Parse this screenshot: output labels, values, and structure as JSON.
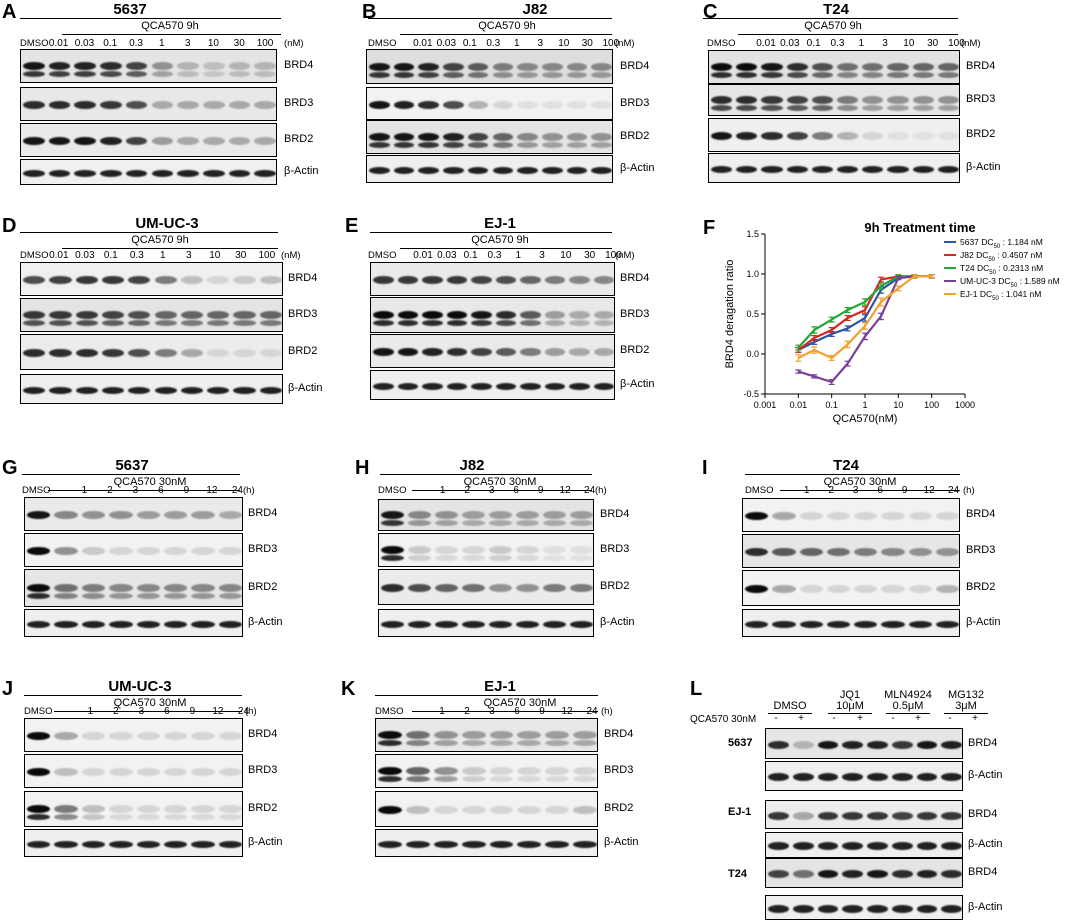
{
  "figure": {
    "panels": [
      {
        "id": "A",
        "cell": "5637",
        "kind": "dose",
        "patterns": [
          {
            "protein": "BRD4",
            "bg": "#e4e4e4",
            "i": [
              0.95,
              0.9,
              0.9,
              0.85,
              0.75,
              0.4,
              0.25,
              0.2,
              0.25,
              0.25
            ],
            "double": true
          },
          {
            "protein": "BRD3",
            "bg": "#e8e8e8",
            "i": [
              0.85,
              0.85,
              0.85,
              0.8,
              0.7,
              0.3,
              0.3,
              0.3,
              0.3,
              0.3
            ],
            "double": false
          },
          {
            "protein": "BRD2",
            "bg": "#eaeaea",
            "i": [
              0.95,
              0.95,
              0.95,
              0.9,
              0.75,
              0.35,
              0.3,
              0.3,
              0.3,
              0.3
            ],
            "double": false
          },
          {
            "protein": "β-Actin",
            "bg": "#f0f0f0",
            "i": [
              0.9,
              0.9,
              0.9,
              0.9,
              0.9,
              0.9,
              0.9,
              0.9,
              0.9,
              0.9
            ],
            "double": false
          }
        ]
      },
      {
        "id": "B",
        "cell": "J82",
        "kind": "dose",
        "patterns": [
          {
            "protein": "BRD4",
            "bg": "#dedede",
            "i": [
              0.95,
              0.95,
              0.9,
              0.75,
              0.65,
              0.5,
              0.45,
              0.45,
              0.45,
              0.45
            ],
            "double": true
          },
          {
            "protein": "BRD3",
            "bg": "#f2f2f2",
            "i": [
              0.95,
              0.9,
              0.85,
              0.7,
              0.25,
              0.1,
              0.05,
              0.05,
              0.05,
              0.05
            ],
            "double": false
          },
          {
            "protein": "BRD2",
            "bg": "#e4e4e4",
            "i": [
              0.95,
              0.95,
              0.95,
              0.9,
              0.75,
              0.6,
              0.45,
              0.4,
              0.4,
              0.4
            ],
            "double": true
          },
          {
            "protein": "β-Actin",
            "bg": "#efefef",
            "i": [
              0.9,
              0.9,
              0.9,
              0.9,
              0.9,
              0.9,
              0.9,
              0.9,
              0.9,
              0.9
            ],
            "double": false
          }
        ]
      },
      {
        "id": "C",
        "cell": "T24",
        "kind": "dose",
        "patterns": [
          {
            "protein": "BRD4",
            "bg": "#e2e2e2",
            "i": [
              1,
              1,
              0.95,
              0.85,
              0.7,
              0.55,
              0.55,
              0.6,
              0.6,
              0.6
            ],
            "double": true
          },
          {
            "protein": "BRD3",
            "bg": "#e6e6e6",
            "i": [
              0.85,
              0.85,
              0.8,
              0.75,
              0.7,
              0.5,
              0.4,
              0.4,
              0.4,
              0.4
            ],
            "double": true
          },
          {
            "protein": "BRD2",
            "bg": "#efefef",
            "i": [
              0.95,
              0.9,
              0.85,
              0.75,
              0.5,
              0.25,
              0.1,
              0.05,
              0.05,
              0.05
            ],
            "double": false
          },
          {
            "protein": "β-Actin",
            "bg": "#efefef",
            "i": [
              0.9,
              0.9,
              0.9,
              0.9,
              0.9,
              0.9,
              0.9,
              0.9,
              0.9,
              0.9
            ],
            "double": false
          }
        ]
      },
      {
        "id": "D",
        "cell": "UM-UC-3",
        "kind": "dose",
        "patterns": [
          {
            "protein": "BRD4",
            "bg": "#f0f0f0",
            "i": [
              0.7,
              0.75,
              0.8,
              0.8,
              0.75,
              0.5,
              0.2,
              0.1,
              0.15,
              0.2
            ],
            "double": false
          },
          {
            "protein": "BRD3",
            "bg": "#e4e4e4",
            "i": [
              0.8,
              0.8,
              0.8,
              0.75,
              0.7,
              0.6,
              0.6,
              0.6,
              0.6,
              0.6
            ],
            "double": true
          },
          {
            "protein": "BRD2",
            "bg": "#ececec",
            "i": [
              0.85,
              0.85,
              0.85,
              0.8,
              0.7,
              0.5,
              0.3,
              0.1,
              0.1,
              0.1
            ],
            "double": false
          },
          {
            "protein": "β-Actin",
            "bg": "#efefef",
            "i": [
              0.9,
              0.9,
              0.9,
              0.9,
              0.9,
              0.9,
              0.9,
              0.9,
              0.9,
              0.9
            ],
            "double": false
          }
        ]
      },
      {
        "id": "E",
        "cell": "EJ-1",
        "kind": "dose",
        "patterns": [
          {
            "protein": "BRD4",
            "bg": "#eaeaea",
            "i": [
              0.8,
              0.8,
              0.8,
              0.8,
              0.75,
              0.7,
              0.6,
              0.5,
              0.45,
              0.45
            ],
            "double": false
          },
          {
            "protein": "BRD3",
            "bg": "#e8e8e8",
            "i": [
              1,
              1,
              1,
              1,
              0.95,
              0.85,
              0.65,
              0.35,
              0.3,
              0.3
            ],
            "double": true
          },
          {
            "protein": "BRD2",
            "bg": "#eaeaea",
            "i": [
              0.95,
              0.95,
              0.9,
              0.85,
              0.75,
              0.65,
              0.5,
              0.35,
              0.3,
              0.3
            ],
            "double": false
          },
          {
            "protein": "β-Actin",
            "bg": "#efefef",
            "i": [
              0.9,
              0.9,
              0.9,
              0.9,
              0.9,
              0.9,
              0.9,
              0.9,
              0.9,
              0.9
            ],
            "double": false
          }
        ]
      },
      {
        "id": "G",
        "cell": "5637",
        "kind": "time",
        "patterns": [
          {
            "protein": "BRD4",
            "bg": "#eaeaea",
            "i": [
              0.95,
              0.45,
              0.4,
              0.4,
              0.35,
              0.35,
              0.35,
              0.3
            ],
            "double": false
          },
          {
            "protein": "BRD3",
            "bg": "#f2f2f2",
            "i": [
              1,
              0.4,
              0.15,
              0.1,
              0.1,
              0.1,
              0.1,
              0.1
            ],
            "double": false
          },
          {
            "protein": "BRD2",
            "bg": "#e6e6e6",
            "i": [
              1,
              0.55,
              0.5,
              0.45,
              0.45,
              0.45,
              0.45,
              0.45
            ],
            "double": true
          },
          {
            "protein": "β-Actin",
            "bg": "#efefef",
            "i": [
              0.9,
              0.9,
              0.9,
              0.9,
              0.9,
              0.9,
              0.9,
              0.9
            ],
            "double": false
          }
        ]
      },
      {
        "id": "H",
        "cell": "J82",
        "kind": "time",
        "patterns": [
          {
            "protein": "BRD4",
            "bg": "#e4e4e4",
            "i": [
              0.95,
              0.45,
              0.4,
              0.35,
              0.35,
              0.35,
              0.35,
              0.35
            ],
            "double": true
          },
          {
            "protein": "BRD3",
            "bg": "#f2f2f2",
            "i": [
              1,
              0.15,
              0.1,
              0.1,
              0.15,
              0.1,
              0.05,
              0.05
            ],
            "double": true
          },
          {
            "protein": "BRD2",
            "bg": "#ebebeb",
            "i": [
              0.85,
              0.7,
              0.6,
              0.55,
              0.4,
              0.4,
              0.5,
              0.5
            ],
            "double": false
          },
          {
            "protein": "β-Actin",
            "bg": "#efefef",
            "i": [
              0.9,
              0.9,
              0.9,
              0.9,
              0.9,
              0.9,
              0.9,
              0.9
            ],
            "double": false
          }
        ]
      },
      {
        "id": "I",
        "cell": "T24",
        "kind": "time",
        "patterns": [
          {
            "protein": "BRD4",
            "bg": "#f2f2f2",
            "i": [
              1,
              0.3,
              0.1,
              0.1,
              0.1,
              0.1,
              0.1,
              0.1
            ],
            "double": false
          },
          {
            "protein": "BRD3",
            "bg": "#e6e6e6",
            "i": [
              0.85,
              0.65,
              0.6,
              0.55,
              0.5,
              0.45,
              0.4,
              0.4
            ],
            "double": false
          },
          {
            "protein": "BRD2",
            "bg": "#f2f2f2",
            "i": [
              1,
              0.3,
              0.1,
              0.1,
              0.1,
              0.1,
              0.1,
              0.25
            ],
            "double": false
          },
          {
            "protein": "β-Actin",
            "bg": "#efefef",
            "i": [
              0.9,
              0.9,
              0.9,
              0.9,
              0.9,
              0.9,
              0.9,
              0.9
            ],
            "double": false
          }
        ]
      },
      {
        "id": "J",
        "cell": "UM-UC-3",
        "kind": "time",
        "patterns": [
          {
            "protein": "BRD4",
            "bg": "#f2f2f2",
            "i": [
              1,
              0.3,
              0.1,
              0.1,
              0.1,
              0.1,
              0.1,
              0.1
            ],
            "double": false
          },
          {
            "protein": "BRD3",
            "bg": "#f2f2f2",
            "i": [
              1,
              0.2,
              0.1,
              0.1,
              0.1,
              0.1,
              0.1,
              0.1
            ],
            "double": false
          },
          {
            "protein": "BRD2",
            "bg": "#f2f2f2",
            "i": [
              1,
              0.5,
              0.2,
              0.1,
              0.1,
              0.1,
              0.1,
              0.1
            ],
            "double": true
          },
          {
            "protein": "β-Actin",
            "bg": "#efefef",
            "i": [
              0.9,
              0.9,
              0.9,
              0.9,
              0.9,
              0.9,
              0.9,
              0.9
            ],
            "double": false
          }
        ]
      },
      {
        "id": "K",
        "cell": "EJ-1",
        "kind": "time",
        "patterns": [
          {
            "protein": "BRD4",
            "bg": "#e8e8e8",
            "i": [
              1,
              0.55,
              0.4,
              0.35,
              0.35,
              0.35,
              0.35,
              0.35
            ],
            "double": true
          },
          {
            "protein": "BRD3",
            "bg": "#f2f2f2",
            "i": [
              1,
              0.6,
              0.4,
              0.15,
              0.1,
              0.1,
              0.1,
              0.1
            ],
            "double": true
          },
          {
            "protein": "BRD2",
            "bg": "#f2f2f2",
            "i": [
              1,
              0.2,
              0.1,
              0.1,
              0.1,
              0.1,
              0.1,
              0.2
            ],
            "double": false
          },
          {
            "protein": "β-Actin",
            "bg": "#efefef",
            "i": [
              0.9,
              0.9,
              0.9,
              0.9,
              0.9,
              0.9,
              0.9,
              0.9
            ],
            "double": false
          }
        ]
      }
    ],
    "dose_header": {
      "treatment": "QCA570   9h",
      "dmso": "DMSO",
      "unit": "(nM)",
      "lanes": [
        "0.01",
        "0.03",
        "0.1",
        "0.3",
        "1",
        "3",
        "10",
        "30",
        "100"
      ]
    },
    "time_header": {
      "treatment": "QCA570   30nM",
      "dmso": "DMSO",
      "unit": "(h)",
      "lanes": [
        "1",
        "2",
        "3",
        "6",
        "9",
        "12",
        "24"
      ]
    },
    "panel_L": {
      "id": "L",
      "side_label": "QCA570 30nM",
      "groups": [
        {
          "line1": "DMSO",
          "line2": ""
        },
        {
          "line1": "JQ1",
          "line2": "10μM"
        },
        {
          "line1": "MLN4924",
          "line2": "0.5μM"
        },
        {
          "line1": "MG132",
          "line2": "3μM"
        }
      ],
      "signs": [
        "-",
        "+",
        "-",
        "+",
        "-",
        "+",
        "-",
        "+"
      ],
      "cells": [
        "5637",
        "EJ-1",
        "T24"
      ],
      "blots": [
        {
          "protein": "BRD4",
          "bg": "#e6e6e6",
          "i": [
            0.85,
            0.25,
            0.95,
            0.9,
            0.9,
            0.8,
            0.95,
            0.9
          ]
        },
        {
          "protein": "β-Actin",
          "bg": "#efefef",
          "i": [
            0.9,
            0.9,
            0.9,
            0.9,
            0.9,
            0.9,
            0.9,
            0.9
          ]
        },
        {
          "protein": "BRD4",
          "bg": "#ececec",
          "i": [
            0.8,
            0.3,
            0.8,
            0.8,
            0.8,
            0.75,
            0.8,
            0.8
          ]
        },
        {
          "protein": "β-Actin",
          "bg": "#efefef",
          "i": [
            0.9,
            0.9,
            0.9,
            0.9,
            0.9,
            0.9,
            0.9,
            0.9
          ]
        },
        {
          "protein": "BRD4",
          "bg": "#e4e4e4",
          "i": [
            0.75,
            0.55,
            0.95,
            0.9,
            0.95,
            0.85,
            0.9,
            0.85
          ]
        },
        {
          "protein": "β-Actin",
          "bg": "#efefef",
          "i": [
            0.9,
            0.9,
            0.9,
            0.9,
            0.9,
            0.9,
            0.9,
            0.9
          ]
        }
      ]
    }
  },
  "chart_data": {
    "type": "line",
    "title": "9h Treatment time",
    "xlabel": "QCA570(nM)",
    "ylabel": "BRD4 deragation ratio",
    "xscale": "log",
    "xlim": [
      0.001,
      1000
    ],
    "ylim": [
      -0.5,
      1.5
    ],
    "xticks": [
      "0.001",
      "0.01",
      "0.1",
      "1",
      "10",
      "100",
      "1000"
    ],
    "yticks": [
      "-0.5",
      "0.0",
      "0.5",
      "1.0",
      "1.5"
    ],
    "x": [
      0.01,
      0.03,
      0.1,
      0.3,
      1,
      3,
      10,
      30,
      100
    ],
    "series": [
      {
        "name": "5637",
        "dc50": "1.184 nM",
        "color": "#2855a6",
        "values": [
          0.05,
          0.15,
          0.25,
          0.32,
          0.45,
          0.8,
          0.95,
          0.97,
          0.97
        ],
        "err": [
          0.03,
          0.03,
          0.03,
          0.03,
          0.04,
          0.04,
          0.02,
          0.02,
          0.02
        ]
      },
      {
        "name": "J82",
        "dc50": "0.4507 nM",
        "color": "#d42a23",
        "values": [
          0.05,
          0.2,
          0.3,
          0.45,
          0.55,
          0.93,
          0.97,
          0.97,
          0.97
        ],
        "err": [
          0.03,
          0.03,
          0.03,
          0.03,
          0.04,
          0.03,
          0.02,
          0.02,
          0.02
        ]
      },
      {
        "name": "T24",
        "dc50": "0.2313 nM",
        "color": "#27a538",
        "values": [
          0.08,
          0.3,
          0.43,
          0.55,
          0.65,
          0.85,
          0.97,
          0.97,
          0.97
        ],
        "err": [
          0.03,
          0.04,
          0.03,
          0.03,
          0.04,
          0.04,
          0.02,
          0.02,
          0.02
        ]
      },
      {
        "name": "UM-UC-3",
        "dc50": "1.589 nM",
        "color": "#7a3f96",
        "values": [
          -0.22,
          -0.28,
          -0.35,
          -0.12,
          0.22,
          0.47,
          0.95,
          0.97,
          0.97
        ],
        "err": [
          0.02,
          0.02,
          0.03,
          0.03,
          0.04,
          0.04,
          0.02,
          0.02,
          0.02
        ]
      },
      {
        "name": "EJ-1",
        "dc50": "1.041 nM",
        "color": "#f0a12e",
        "values": [
          -0.05,
          0.05,
          -0.05,
          0.12,
          0.35,
          0.65,
          0.82,
          0.97,
          0.97
        ],
        "err": [
          0.04,
          0.04,
          0.03,
          0.04,
          0.04,
          0.05,
          0.03,
          0.02,
          0.02
        ]
      }
    ],
    "legend_prefix": "DC",
    "legend_sub": "50",
    "legend_position": "top-right"
  }
}
